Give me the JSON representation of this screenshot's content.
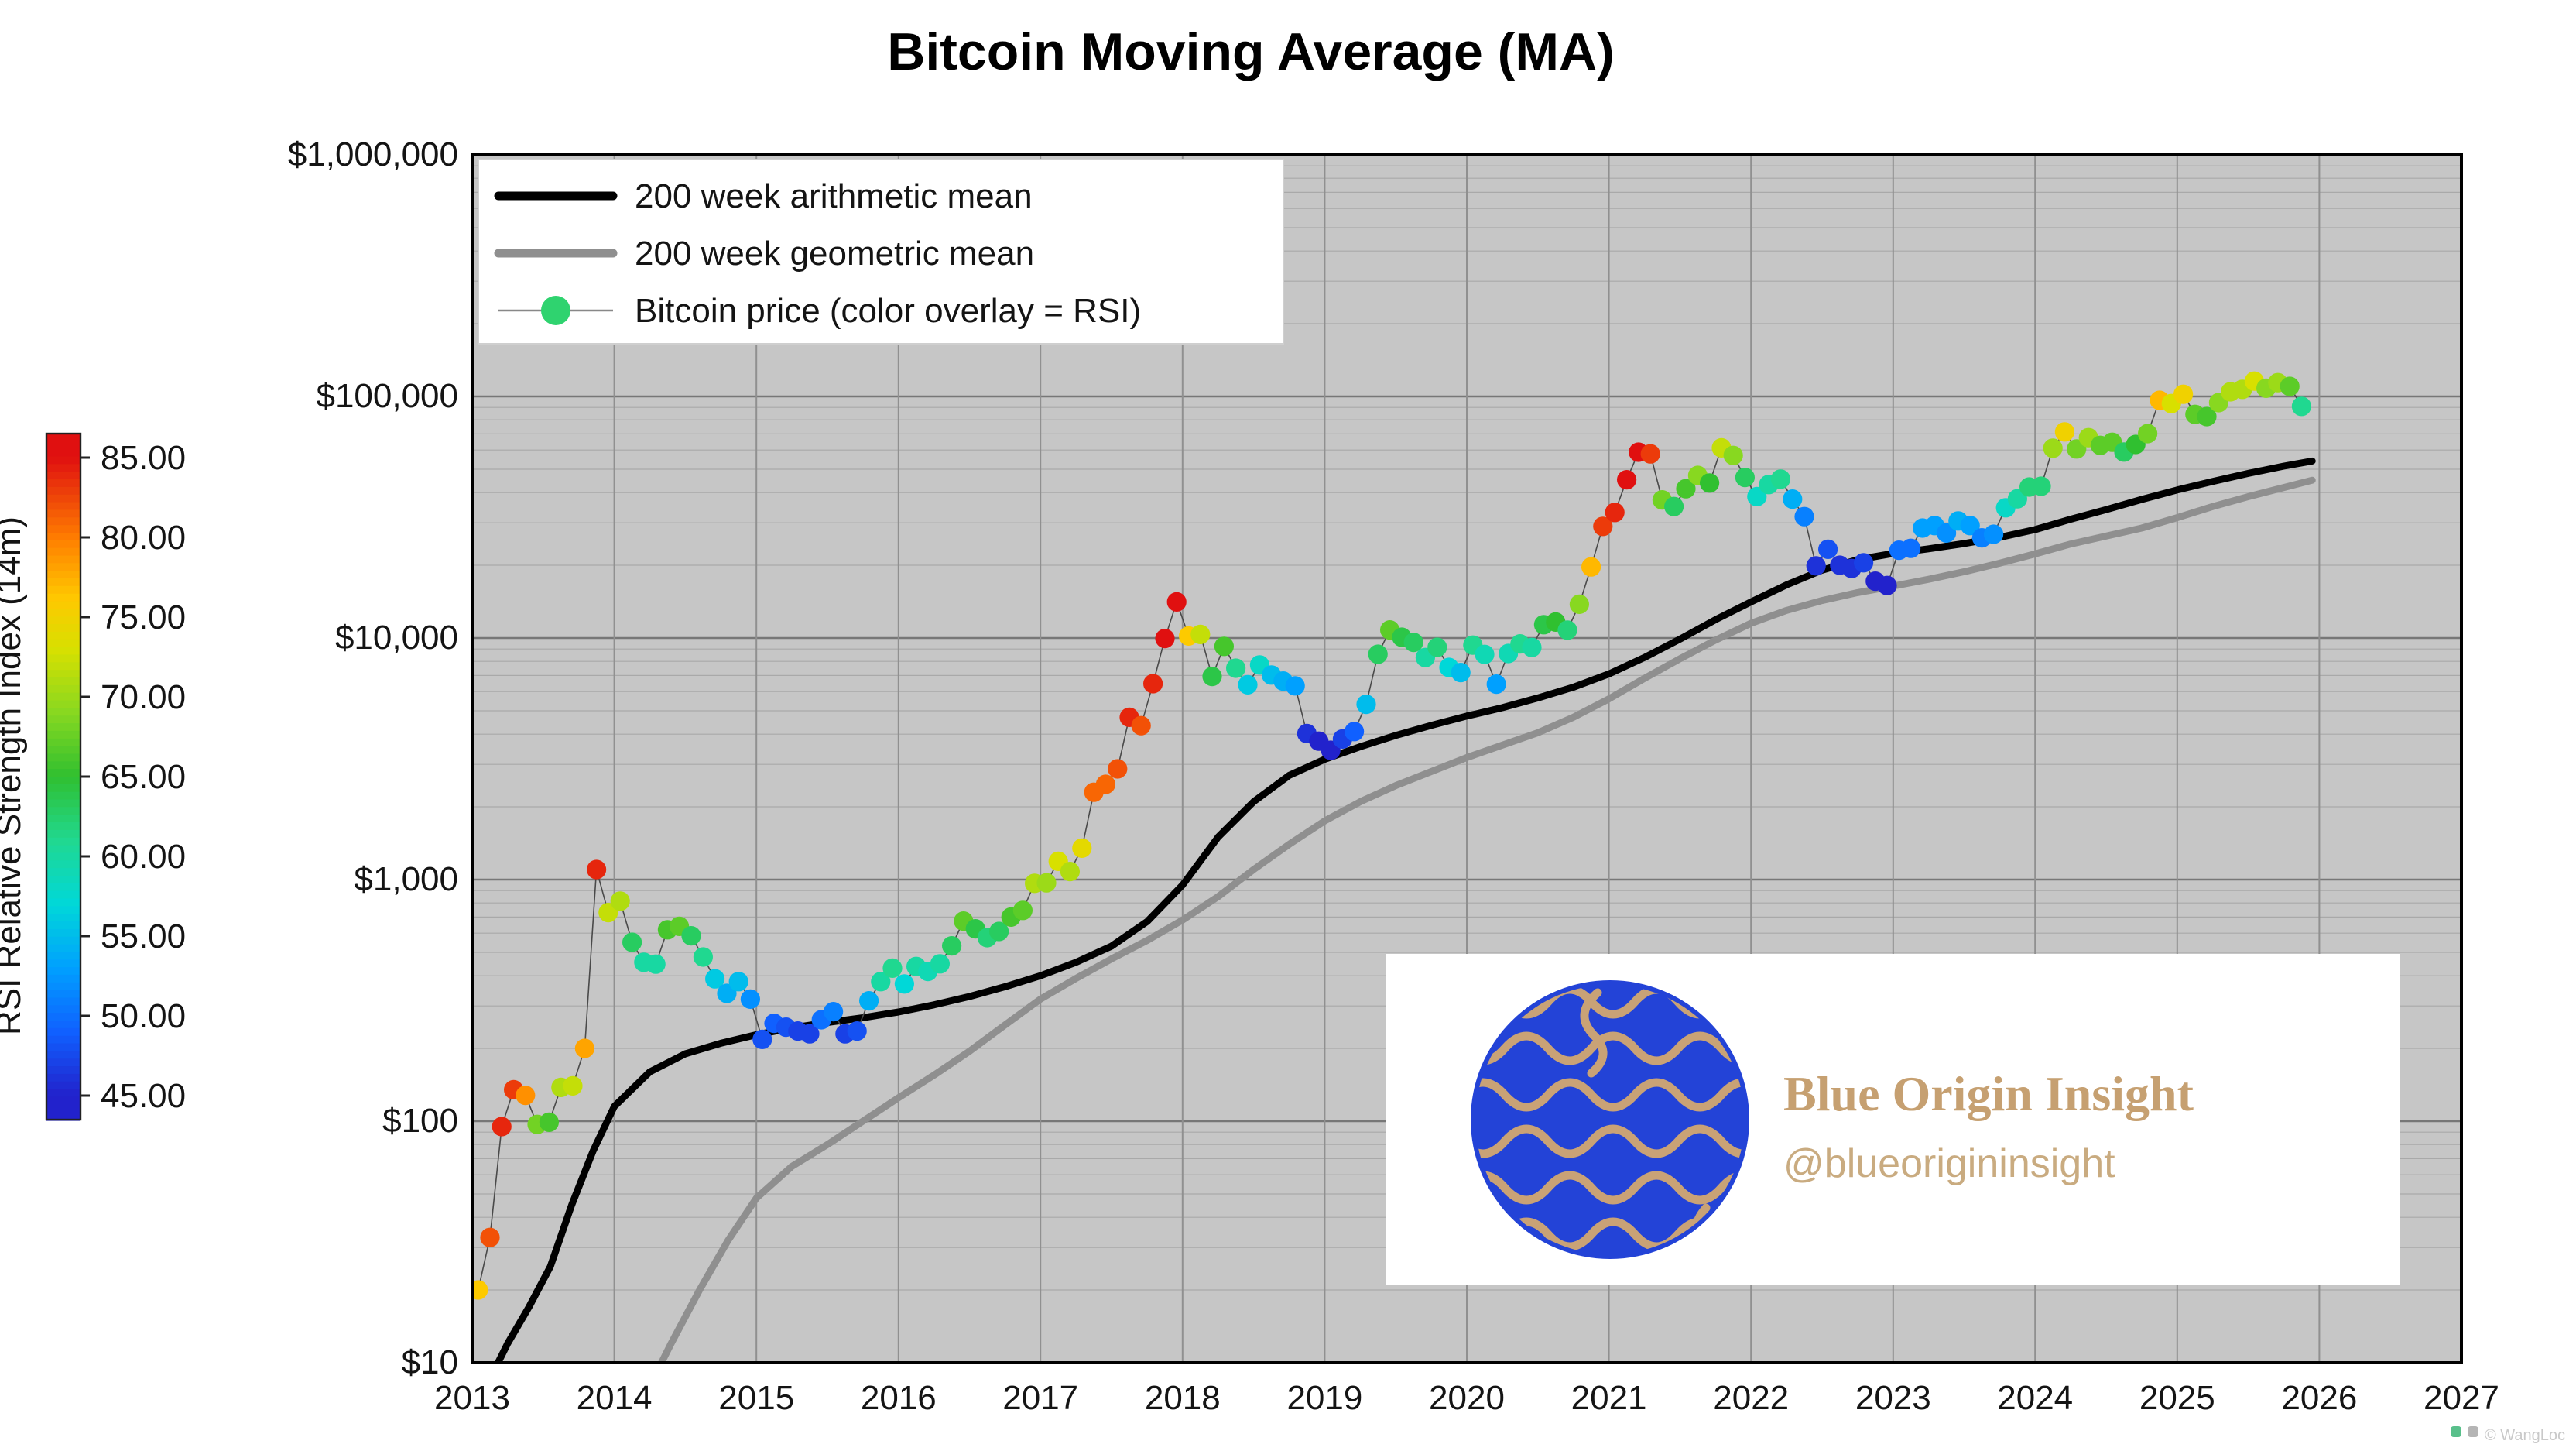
{
  "watermark": {
    "brand": "Blue Origin Insight",
    "handle": "@blueorigininsight"
  },
  "footer": {
    "credit": "© WangLoc"
  },
  "colors": {
    "plot_bg": "#c6c6c6",
    "legend_dot": "#2fd36f",
    "logo_blue": "#2343d7",
    "logo_tan": "#c9a276",
    "brand_tan": "#c6a071",
    "handle_tan": "#c9ab80"
  },
  "chart_data": {
    "type": "scatter",
    "title": "Bitcoin Moving Average (MA)",
    "xlabel": "",
    "ylabel": "",
    "x_axis": {
      "min": 2013,
      "max": 2027,
      "ticks": [
        2013,
        2014,
        2015,
        2016,
        2017,
        2018,
        2019,
        2020,
        2021,
        2022,
        2023,
        2024,
        2025,
        2026,
        2027
      ]
    },
    "y_axis": {
      "scale": "log",
      "min": 10,
      "max": 1000000,
      "ticks": [
        {
          "v": 10,
          "label": "$10"
        },
        {
          "v": 100,
          "label": "$100"
        },
        {
          "v": 1000,
          "label": "$1,000"
        },
        {
          "v": 10000,
          "label": "$10,000"
        },
        {
          "v": 100000,
          "label": "$100,000"
        },
        {
          "v": 1000000,
          "label": "$1,000,000"
        }
      ]
    },
    "legend": [
      "200 week arithmetic mean",
      "200 week geometric mean",
      "Bitcoin price (color overlay = RSI)"
    ],
    "colorbar": {
      "label": "RSI Relative Strength Index (14m)",
      "min": 43.5,
      "max": 86.5,
      "ticks": [
        {
          "v": 85,
          "label": "85.00"
        },
        {
          "v": 80,
          "label": "80.00"
        },
        {
          "v": 75,
          "label": "75.00"
        },
        {
          "v": 70,
          "label": "70.00"
        },
        {
          "v": 65,
          "label": "65.00"
        },
        {
          "v": 60,
          "label": "60.00"
        },
        {
          "v": 55,
          "label": "55.00"
        },
        {
          "v": 50,
          "label": "50.00"
        },
        {
          "v": 45,
          "label": "45.00"
        }
      ],
      "stops": [
        {
          "t": 0,
          "c": "#2222cc"
        },
        {
          "t": 0.1,
          "c": "#1060ff"
        },
        {
          "t": 0.2,
          "c": "#00a0ff"
        },
        {
          "t": 0.3,
          "c": "#00d8d8"
        },
        {
          "t": 0.4,
          "c": "#20d890"
        },
        {
          "t": 0.5,
          "c": "#30c030"
        },
        {
          "t": 0.6,
          "c": "#88d820"
        },
        {
          "t": 0.7,
          "c": "#d8e000"
        },
        {
          "t": 0.78,
          "c": "#ffc800"
        },
        {
          "t": 0.87,
          "c": "#ff8000"
        },
        {
          "t": 1,
          "c": "#e01010"
        }
      ]
    },
    "series": [
      {
        "name": "200 week arithmetic mean",
        "color": "#000000",
        "width": 4.5,
        "data": [
          [
            2013.1,
            8
          ],
          [
            2013.25,
            12
          ],
          [
            2013.4,
            17
          ],
          [
            2013.55,
            25
          ],
          [
            2013.7,
            45
          ],
          [
            2013.85,
            75
          ],
          [
            2014.0,
            115
          ],
          [
            2014.25,
            160
          ],
          [
            2014.5,
            190
          ],
          [
            2014.75,
            210
          ],
          [
            2015.0,
            228
          ],
          [
            2015.25,
            243
          ],
          [
            2015.5,
            256
          ],
          [
            2015.75,
            268
          ],
          [
            2016.0,
            283
          ],
          [
            2016.25,
            303
          ],
          [
            2016.5,
            328
          ],
          [
            2016.75,
            360
          ],
          [
            2017.0,
            400
          ],
          [
            2017.25,
            455
          ],
          [
            2017.5,
            530
          ],
          [
            2017.75,
            670
          ],
          [
            2018.0,
            950
          ],
          [
            2018.25,
            1500
          ],
          [
            2018.5,
            2100
          ],
          [
            2018.75,
            2700
          ],
          [
            2019.0,
            3150
          ],
          [
            2019.25,
            3550
          ],
          [
            2019.5,
            3950
          ],
          [
            2019.75,
            4350
          ],
          [
            2020.0,
            4750
          ],
          [
            2020.25,
            5150
          ],
          [
            2020.5,
            5650
          ],
          [
            2020.75,
            6250
          ],
          [
            2021.0,
            7100
          ],
          [
            2021.25,
            8300
          ],
          [
            2021.5,
            9900
          ],
          [
            2021.75,
            11900
          ],
          [
            2022.0,
            14100
          ],
          [
            2022.25,
            16600
          ],
          [
            2022.5,
            19100
          ],
          [
            2022.75,
            21100
          ],
          [
            2023.0,
            22400
          ],
          [
            2023.25,
            23400
          ],
          [
            2023.5,
            24600
          ],
          [
            2023.75,
            26100
          ],
          [
            2024.0,
            28100
          ],
          [
            2024.25,
            31000
          ],
          [
            2024.5,
            34000
          ],
          [
            2024.75,
            37500
          ],
          [
            2025.0,
            41000
          ],
          [
            2025.25,
            44500
          ],
          [
            2025.5,
            48000
          ],
          [
            2025.75,
            51500
          ],
          [
            2025.95,
            54000
          ]
        ]
      },
      {
        "name": "200 week geometric mean",
        "color": "#8f8f8f",
        "width": 4.5,
        "data": [
          [
            2014.25,
            8
          ],
          [
            2014.4,
            12
          ],
          [
            2014.6,
            20
          ],
          [
            2014.8,
            32
          ],
          [
            2015.0,
            48
          ],
          [
            2015.25,
            65
          ],
          [
            2015.5,
            80
          ],
          [
            2015.75,
            100
          ],
          [
            2016.0,
            125
          ],
          [
            2016.25,
            155
          ],
          [
            2016.5,
            195
          ],
          [
            2016.75,
            250
          ],
          [
            2017.0,
            320
          ],
          [
            2017.25,
            390
          ],
          [
            2017.5,
            470
          ],
          [
            2017.75,
            560
          ],
          [
            2018.0,
            680
          ],
          [
            2018.25,
            850
          ],
          [
            2018.5,
            1100
          ],
          [
            2018.75,
            1400
          ],
          [
            2019.0,
            1750
          ],
          [
            2019.25,
            2100
          ],
          [
            2019.5,
            2450
          ],
          [
            2019.75,
            2800
          ],
          [
            2020.0,
            3200
          ],
          [
            2020.25,
            3600
          ],
          [
            2020.5,
            4050
          ],
          [
            2020.75,
            4700
          ],
          [
            2021.0,
            5600
          ],
          [
            2021.25,
            6800
          ],
          [
            2021.5,
            8200
          ],
          [
            2021.75,
            9800
          ],
          [
            2022.0,
            11500
          ],
          [
            2022.25,
            13000
          ],
          [
            2022.5,
            14300
          ],
          [
            2022.75,
            15400
          ],
          [
            2023.0,
            16400
          ],
          [
            2023.25,
            17500
          ],
          [
            2023.5,
            18800
          ],
          [
            2023.75,
            20400
          ],
          [
            2024.0,
            22300
          ],
          [
            2024.25,
            24500
          ],
          [
            2024.75,
            28500
          ],
          [
            2025.0,
            31500
          ],
          [
            2025.25,
            35000
          ],
          [
            2025.5,
            38500
          ],
          [
            2025.75,
            42000
          ],
          [
            2025.95,
            45000
          ]
        ]
      }
    ],
    "price_points": [
      [
        2013.042,
        20,
        76
      ],
      [
        2013.125,
        33,
        82
      ],
      [
        2013.208,
        95,
        84
      ],
      [
        2013.292,
        135,
        83
      ],
      [
        2013.375,
        128,
        79
      ],
      [
        2013.458,
        97,
        68
      ],
      [
        2013.542,
        99,
        66
      ],
      [
        2013.625,
        138,
        71
      ],
      [
        2013.708,
        140,
        72
      ],
      [
        2013.792,
        200,
        78
      ],
      [
        2013.875,
        1100,
        84
      ],
      [
        2013.958,
        730,
        72
      ],
      [
        2014.042,
        815,
        71
      ],
      [
        2014.125,
        550,
        63
      ],
      [
        2014.208,
        455,
        60
      ],
      [
        2014.292,
        447,
        60
      ],
      [
        2014.375,
        620,
        66
      ],
      [
        2014.458,
        640,
        67
      ],
      [
        2014.542,
        585,
        63
      ],
      [
        2014.625,
        478,
        61
      ],
      [
        2014.708,
        388,
        56
      ],
      [
        2014.792,
        338,
        54
      ],
      [
        2014.875,
        378,
        55
      ],
      [
        2014.958,
        320,
        52
      ],
      [
        2015.042,
        218,
        48
      ],
      [
        2015.125,
        254,
        49
      ],
      [
        2015.208,
        245,
        48
      ],
      [
        2015.292,
        236,
        47
      ],
      [
        2015.375,
        230,
        47
      ],
      [
        2015.458,
        263,
        50
      ],
      [
        2015.542,
        284,
        51
      ],
      [
        2015.625,
        230,
        47
      ],
      [
        2015.708,
        236,
        48
      ],
      [
        2015.792,
        315,
        54
      ],
      [
        2015.875,
        378,
        60
      ],
      [
        2015.958,
        430,
        61
      ],
      [
        2016.042,
        370,
        57
      ],
      [
        2016.125,
        437,
        60
      ],
      [
        2016.208,
        417,
        59
      ],
      [
        2016.292,
        448,
        60
      ],
      [
        2016.375,
        532,
        63
      ],
      [
        2016.458,
        673,
        67
      ],
      [
        2016.542,
        625,
        64
      ],
      [
        2016.625,
        575,
        62
      ],
      [
        2016.708,
        610,
        63
      ],
      [
        2016.792,
        700,
        66
      ],
      [
        2016.875,
        745,
        67
      ],
      [
        2016.958,
        965,
        71
      ],
      [
        2017.042,
        970,
        70
      ],
      [
        2017.125,
        1190,
        73
      ],
      [
        2017.208,
        1080,
        71
      ],
      [
        2017.292,
        1350,
        74
      ],
      [
        2017.375,
        2300,
        81
      ],
      [
        2017.458,
        2480,
        81
      ],
      [
        2017.542,
        2875,
        82
      ],
      [
        2017.625,
        4700,
        84
      ],
      [
        2017.708,
        4340,
        82
      ],
      [
        2017.792,
        6470,
        84
      ],
      [
        2017.875,
        9950,
        85
      ],
      [
        2017.958,
        14100,
        85
      ],
      [
        2018.042,
        10200,
        76
      ],
      [
        2018.125,
        10350,
        72
      ],
      [
        2018.208,
        6930,
        64
      ],
      [
        2018.292,
        9240,
        66
      ],
      [
        2018.375,
        7500,
        61
      ],
      [
        2018.458,
        6400,
        56
      ],
      [
        2018.542,
        7730,
        58
      ],
      [
        2018.625,
        7030,
        55
      ],
      [
        2018.708,
        6630,
        54
      ],
      [
        2018.792,
        6340,
        53
      ],
      [
        2018.875,
        4020,
        46
      ],
      [
        2018.958,
        3740,
        45
      ],
      [
        2019.042,
        3430,
        45
      ],
      [
        2019.125,
        3820,
        47
      ],
      [
        2019.208,
        4100,
        49
      ],
      [
        2019.292,
        5320,
        55
      ],
      [
        2019.375,
        8560,
        63
      ],
      [
        2019.458,
        10800,
        67
      ],
      [
        2019.542,
        10080,
        64
      ],
      [
        2019.625,
        9600,
        63
      ],
      [
        2019.708,
        8300,
        60
      ],
      [
        2019.792,
        9150,
        62
      ],
      [
        2019.875,
        7550,
        57
      ],
      [
        2019.958,
        7200,
        55
      ],
      [
        2020.042,
        9350,
        61
      ],
      [
        2020.125,
        8550,
        59
      ],
      [
        2020.208,
        6440,
        53
      ],
      [
        2020.292,
        8630,
        59
      ],
      [
        2020.375,
        9450,
        61
      ],
      [
        2020.458,
        9140,
        60
      ],
      [
        2020.542,
        11350,
        64
      ],
      [
        2020.625,
        11650,
        65
      ],
      [
        2020.708,
        10780,
        62
      ],
      [
        2020.792,
        13800,
        69
      ],
      [
        2020.875,
        19700,
        77
      ],
      [
        2020.958,
        29000,
        83
      ],
      [
        2021.042,
        33100,
        84
      ],
      [
        2021.125,
        45200,
        85
      ],
      [
        2021.208,
        58800,
        85
      ],
      [
        2021.292,
        57800,
        83
      ],
      [
        2021.375,
        37300,
        68
      ],
      [
        2021.458,
        35000,
        63
      ],
      [
        2021.542,
        41500,
        66
      ],
      [
        2021.625,
        47100,
        69
      ],
      [
        2021.708,
        43800,
        65
      ],
      [
        2021.792,
        61300,
        72
      ],
      [
        2021.875,
        57000,
        69
      ],
      [
        2021.958,
        46200,
        63
      ],
      [
        2022.042,
        38500,
        58
      ],
      [
        2022.125,
        43200,
        60
      ],
      [
        2022.208,
        45500,
        61
      ],
      [
        2022.292,
        37600,
        54
      ],
      [
        2022.375,
        31800,
        51
      ],
      [
        2022.458,
        19900,
        46
      ],
      [
        2022.542,
        23300,
        48
      ],
      [
        2022.625,
        20000,
        46
      ],
      [
        2022.708,
        19400,
        46
      ],
      [
        2022.792,
        20500,
        47
      ],
      [
        2022.875,
        17200,
        45
      ],
      [
        2022.958,
        16500,
        45
      ],
      [
        2023.042,
        23100,
        50
      ],
      [
        2023.125,
        23500,
        50
      ],
      [
        2023.208,
        28500,
        53
      ],
      [
        2023.292,
        29200,
        53
      ],
      [
        2023.375,
        27200,
        52
      ],
      [
        2023.458,
        30500,
        54
      ],
      [
        2023.542,
        29200,
        53
      ],
      [
        2023.625,
        26000,
        51
      ],
      [
        2023.708,
        26900,
        52
      ],
      [
        2023.792,
        34600,
        58
      ],
      [
        2023.875,
        37700,
        60
      ],
      [
        2023.958,
        42200,
        62
      ],
      [
        2024.042,
        42500,
        62
      ],
      [
        2024.125,
        61100,
        70
      ],
      [
        2024.208,
        71300,
        75
      ],
      [
        2024.292,
        60600,
        68
      ],
      [
        2024.375,
        67500,
        70
      ],
      [
        2024.458,
        62700,
        67
      ],
      [
        2024.542,
        64600,
        67
      ],
      [
        2024.625,
        58900,
        63
      ],
      [
        2024.708,
        63300,
        65
      ],
      [
        2024.792,
        70200,
        68
      ],
      [
        2024.875,
        96400,
        77
      ],
      [
        2024.958,
        93400,
        73
      ],
      [
        2025.042,
        102100,
        75
      ],
      [
        2025.125,
        84300,
        67
      ],
      [
        2025.208,
        82500,
        66
      ],
      [
        2025.292,
        94200,
        69
      ],
      [
        2025.375,
        104600,
        71
      ],
      [
        2025.458,
        107100,
        71
      ],
      [
        2025.542,
        115800,
        73
      ],
      [
        2025.625,
        108200,
        69
      ],
      [
        2025.708,
        114000,
        70
      ],
      [
        2025.792,
        110000,
        67
      ],
      [
        2025.875,
        91000,
        61
      ]
    ]
  }
}
